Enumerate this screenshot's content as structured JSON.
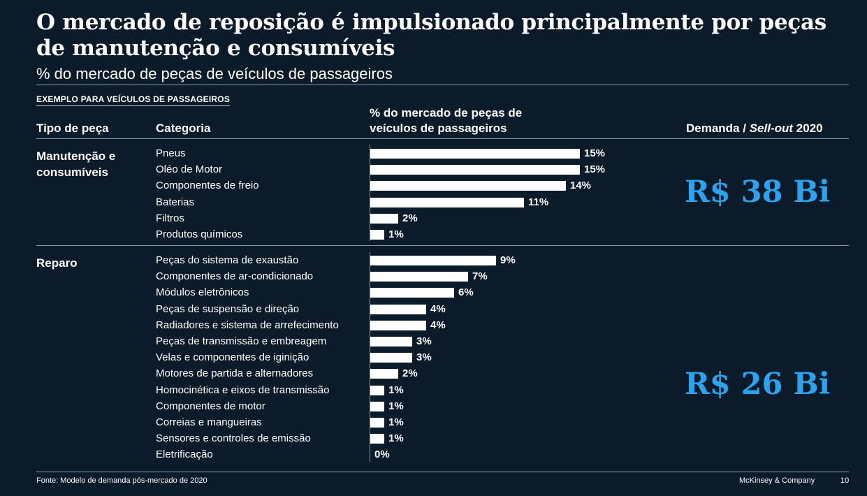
{
  "title": "O mercado de reposição é impulsionado principalmente por peças de manutenção e consumíveis",
  "subtitle": "% do mercado de peças de veículos de passageiros",
  "example_label": "EXEMPLO PARA VEÍCULOS DE PASSAGEIROS",
  "headers": {
    "tipo": "Tipo de peça",
    "categoria": "Categoria",
    "mercado": "% do mercado de peças de veículos de passageiros",
    "demanda_prefix": "Demanda /",
    "demanda_italic": "Sell-out",
    "demanda_suffix": "2020"
  },
  "chart_data": {
    "type": "bar",
    "orientation": "horizontal",
    "unit": "%",
    "groups": [
      {
        "name": "Manutenção e consumíveis",
        "total": "R$ 38 Bi",
        "categories": [
          "Pneus",
          "Oléo de Motor",
          "Componentes de freio",
          "Baterias",
          "Filtros",
          "Produtos químicos"
        ],
        "values": [
          15,
          15,
          14,
          11,
          2,
          1
        ]
      },
      {
        "name": "Reparo",
        "total": "R$ 26 Bi",
        "categories": [
          "Peças do sistema de exaustão",
          "Componentes de ar-condicionado",
          "Módulos eletrônicos",
          "Peças de suspensão e direção",
          "Radiadores e sistema de arrefecimento",
          "Peças de transmissão e embreagem",
          "Velas e componentes de iginição",
          "Motores de partida e alternadores",
          "Homocinética e eixos de transmissão",
          "Componentes de motor",
          "Correias e mangueiras",
          "Sensores e controles de emissão",
          "Eletrificação"
        ],
        "values": [
          9,
          7,
          6,
          4,
          4,
          3,
          3,
          2,
          1,
          1,
          1,
          1,
          0
        ]
      }
    ]
  },
  "footer": {
    "source": "Fonte: Modelo de demanda pós-mercado de 2020",
    "brand": "McKinsey & Company",
    "page": "10"
  },
  "colors": {
    "background": "#0b1b2a",
    "bar": "#ffffff",
    "accent": "#2aa3f0"
  }
}
